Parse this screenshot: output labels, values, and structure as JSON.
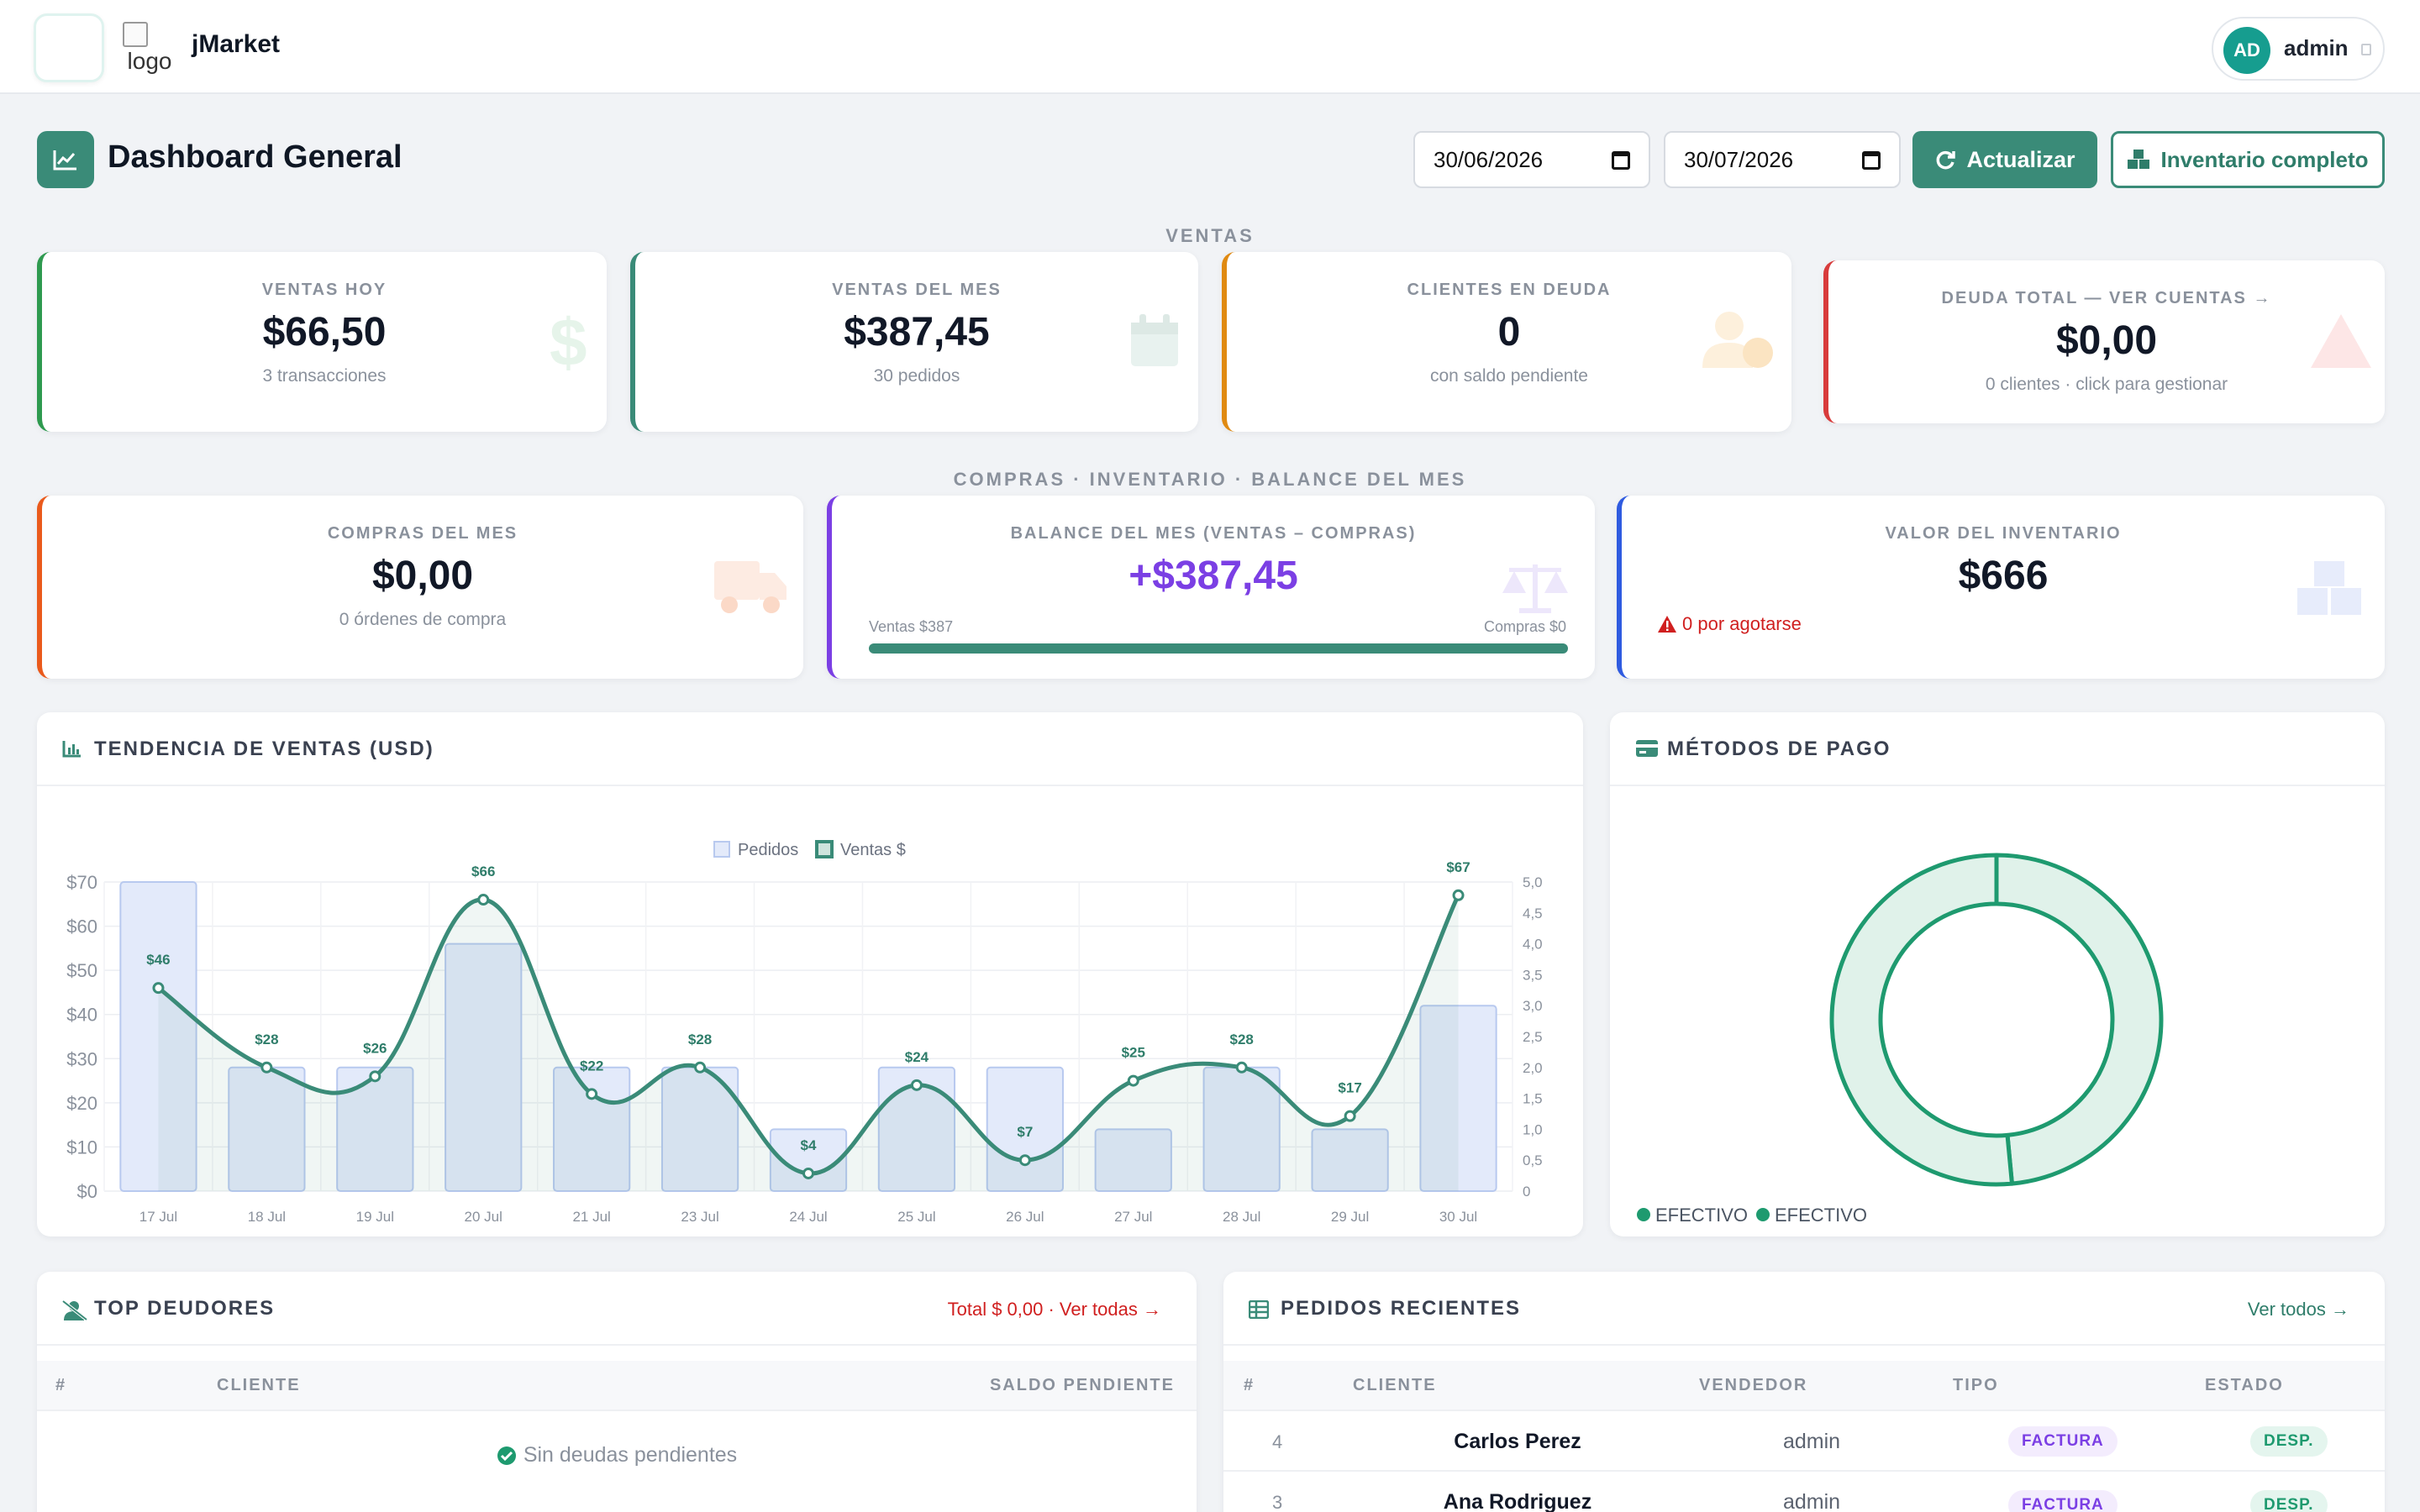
{
  "app": {
    "name": "jMarket",
    "logo_alt": "logo",
    "user": {
      "initials": "AD",
      "name": "admin"
    }
  },
  "header": {
    "title": "Dashboard General",
    "date_from": "30/06/2026",
    "date_to": "30/07/2026",
    "refresh_label": "Actualizar",
    "inventory_label": "Inventario completo"
  },
  "sections": {
    "sales": "VENTAS",
    "purchases": "COMPRAS · INVENTARIO · BALANCE DEL MES"
  },
  "kpis": {
    "ventas_hoy": {
      "label": "VENTAS HOY",
      "value": "$66,50",
      "sub": "3 transacciones",
      "icon": "dollar-icon",
      "color": "#2e9a4f"
    },
    "ventas_mes": {
      "label": "VENTAS DEL MES",
      "value": "$387,45",
      "sub": "30 pedidos",
      "icon": "calendar-icon",
      "color": "#3a8b78"
    },
    "clientes_deuda": {
      "label": "CLIENTES EN DEUDA",
      "value": "0",
      "sub": "con saldo pendiente",
      "icon": "user-clock-icon",
      "color": "#e08a12"
    },
    "deuda_total": {
      "label": "DEUDA TOTAL — VER CUENTAS →",
      "value": "$0,00",
      "sub": "0 clientes · click para gestionar",
      "icon": "warning-icon",
      "color": "#d83b3b"
    },
    "compras_mes": {
      "label": "COMPRAS DEL MES",
      "value": "$0,00",
      "sub": "0 órdenes de compra",
      "icon": "truck-icon",
      "color": "#ea5a1c"
    },
    "balance_mes": {
      "label": "BALANCE DEL MES (VENTAS – COMPRAS)",
      "value": "+$387,45",
      "left": "Ventas $387",
      "right": "Compras $0",
      "progress": 1.0,
      "icon": "scale-icon",
      "color": "#7b3fe4"
    },
    "valor_inventario": {
      "label": "VALOR DEL INVENTARIO",
      "value": "$666",
      "alert": "0 por agotarse",
      "icon": "boxes-icon",
      "color": "#2f5be0"
    }
  },
  "trend": {
    "title": "TENDENCIA DE VENTAS (USD)"
  },
  "chart_data": [
    {
      "type": "bar+line",
      "title": "TENDENCIA DE VENTAS (USD)",
      "categories": [
        "17 Jul",
        "18 Jul",
        "19 Jul",
        "20 Jul",
        "21 Jul",
        "23 Jul",
        "24 Jul",
        "25 Jul",
        "26 Jul",
        "27 Jul",
        "28 Jul",
        "29 Jul",
        "30 Jul"
      ],
      "series": [
        {
          "name": "Pedidos",
          "type": "bar",
          "axis": "right",
          "values": [
            5,
            2,
            2,
            4,
            2,
            2,
            1,
            2,
            2,
            1,
            2,
            1,
            3
          ]
        },
        {
          "name": "Ventas $",
          "type": "line",
          "axis": "left",
          "values": [
            46,
            28,
            26,
            66,
            22,
            28,
            4,
            24,
            7,
            25,
            28,
            17,
            67
          ]
        }
      ],
      "point_labels": [
        "$46",
        "$28",
        "$26",
        "$66",
        "$22",
        "$28",
        "$4",
        "$24",
        "$7",
        "$25",
        "$28",
        "$17",
        "$67"
      ],
      "y_left": {
        "ticks": [
          "$0",
          "$10",
          "$20",
          "$30",
          "$40",
          "$50",
          "$60",
          "$70"
        ],
        "ylim": [
          0,
          70
        ]
      },
      "y_right": {
        "ticks": [
          "0",
          "0,5",
          "1,0",
          "1,5",
          "2,0",
          "2,5",
          "3,0",
          "3,5",
          "4,0",
          "4,5",
          "5,0"
        ],
        "ylim": [
          0,
          5
        ]
      },
      "legend": "top",
      "grid": true
    },
    {
      "type": "pie",
      "title": "MÉTODOS DE PAGO",
      "categories": [
        "EFECTIVO",
        "EFECTIVO"
      ],
      "values": [
        48.5,
        51.5
      ],
      "legend": "bottom-left"
    }
  ],
  "payments": {
    "title": "MÉTODOS DE PAGO",
    "legend": [
      "EFECTIVO",
      "EFECTIVO"
    ]
  },
  "debtors": {
    "title": "TOP DEUDORES",
    "link": "Total $ 0,00 · Ver todas →",
    "columns": [
      "#",
      "CLIENTE",
      "SALDO PENDIENTE"
    ],
    "empty": "Sin deudas pendientes"
  },
  "orders": {
    "title": "PEDIDOS RECIENTES",
    "link": "Ver todos →",
    "columns": [
      "#",
      "CLIENTE",
      "VENDEDOR",
      "TIPO",
      "ESTADO"
    ],
    "rows": [
      {
        "id": "4",
        "cliente": "Carlos Perez",
        "vendedor": "admin",
        "tipo": "FACTURA",
        "estado": "DESP."
      },
      {
        "id": "3",
        "cliente": "Ana Rodriguez",
        "vendedor": "admin",
        "tipo": "FACTURA",
        "estado": "DESP."
      }
    ]
  }
}
